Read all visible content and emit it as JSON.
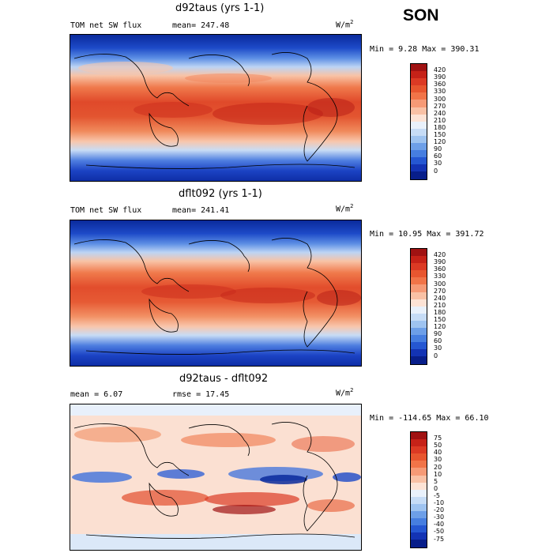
{
  "season": "SON",
  "units_prefix": "W/m",
  "units_exp": "2",
  "panels": [
    {
      "title": "d92taus (yrs 1-1)",
      "left_label": "TOM net SW flux",
      "center_label": "mean= 247.48",
      "stats": "Min =   9.28 Max = 390.31",
      "levels": [
        "420",
        "390",
        "360",
        "330",
        "300",
        "270",
        "240",
        "210",
        "180",
        "150",
        "120",
        "90",
        "60",
        "30",
        "0"
      ],
      "colors": [
        "#a01212",
        "#c62218",
        "#dc3a24",
        "#e8562f",
        "#f17448",
        "#f69a76",
        "#f9c1a5",
        "#fde3d5",
        "#e9f1fb",
        "#c6dcf6",
        "#9ec3f0",
        "#6d9fe8",
        "#467ee0",
        "#2557d2",
        "#1333b4",
        "#081e8a"
      ]
    },
    {
      "title": "dflt092 (yrs 1-1)",
      "left_label": "TOM net SW flux",
      "center_label": "mean= 241.41",
      "stats": "Min =  10.95 Max = 391.72",
      "levels": [
        "420",
        "390",
        "360",
        "330",
        "300",
        "270",
        "240",
        "210",
        "180",
        "150",
        "120",
        "90",
        "60",
        "30",
        "0"
      ],
      "colors": [
        "#a01212",
        "#c62218",
        "#dc3a24",
        "#e8562f",
        "#f17448",
        "#f69a76",
        "#f9c1a5",
        "#fde3d5",
        "#e9f1fb",
        "#c6dcf6",
        "#9ec3f0",
        "#6d9fe8",
        "#467ee0",
        "#2557d2",
        "#1333b4",
        "#081e8a"
      ]
    },
    {
      "title": "d92taus - dflt092",
      "left_label": "mean =    6.07",
      "center_label": "rmse =  17.45",
      "stats": "Min = -114.65 Max =  66.10",
      "levels": [
        "75",
        "50",
        "40",
        "30",
        "20",
        "10",
        "5",
        "0",
        "-5",
        "-10",
        "-20",
        "-30",
        "-40",
        "-50",
        "-75"
      ],
      "colors": [
        "#a01212",
        "#c62218",
        "#dc3a24",
        "#e8562f",
        "#f17448",
        "#f69a76",
        "#f9c1a5",
        "#fde3d5",
        "#e9f1fb",
        "#c6dcf6",
        "#9ec3f0",
        "#6d9fe8",
        "#467ee0",
        "#2557d2",
        "#1333b4",
        "#081e8a"
      ]
    }
  ]
}
